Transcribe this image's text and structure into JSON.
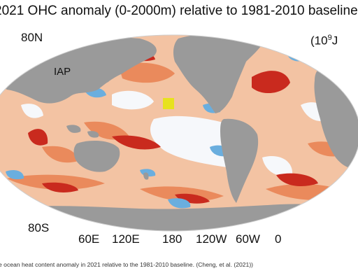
{
  "title": "2021 OHC anomaly (0-2000m) relative to 1981-2010 baseline",
  "units_prefix": "(10",
  "units_exp": "9",
  "units_suffix": "J",
  "dataset_label": "IAP",
  "lat_labels": {
    "north": "80N",
    "south": "80S"
  },
  "lon_labels": [
    "60E",
    "120E",
    "180",
    "120W",
    "60W",
    "0"
  ],
  "caption": "e ocean heat content anomaly in 2021 relative to the 1981-2010 baseline. (Cheng, et al. (2021))",
  "colors": {
    "land": "#9a9a9a",
    "ocean_neutral": "#f4f7fb",
    "warm_light": "#f2b58f",
    "warm_mid": "#e8744a",
    "warm_strong": "#c8261c",
    "cool_light": "#a9d4ee",
    "cool_mid": "#4a9ad0",
    "marker": "#e7e21e"
  }
}
